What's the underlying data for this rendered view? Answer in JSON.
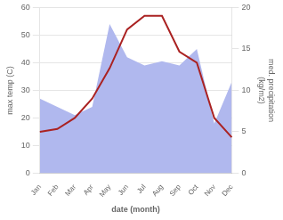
{
  "chart_data": {
    "type": "line",
    "xlabel": "date (month)",
    "ylabel": "max temp (C)",
    "y2label": "med. precipitation\n(kg/m2)",
    "categories": [
      "Jan",
      "Feb",
      "Mar",
      "Apr",
      "May",
      "Jun",
      "Jul",
      "Aug",
      "Sep",
      "Oct",
      "Nov",
      "Dec"
    ],
    "series": [
      {
        "type": "area",
        "color": "#b0b8ee",
        "axis": "y2",
        "values": [
          9,
          8,
          7,
          8,
          18,
          14,
          13,
          13.5,
          13,
          15,
          6,
          11
        ]
      },
      {
        "type": "line",
        "color": "#aa2222",
        "values": [
          15,
          16,
          20,
          27,
          38,
          52,
          57,
          57,
          44,
          40,
          20,
          13
        ]
      }
    ],
    "ylim": [
      0,
      60
    ],
    "yticks": [
      0,
      10,
      20,
      30,
      40,
      50,
      60
    ],
    "y2lim": [
      0,
      20
    ],
    "y2ticks": [
      0,
      5,
      10,
      15,
      20
    ],
    "grid": true
  }
}
